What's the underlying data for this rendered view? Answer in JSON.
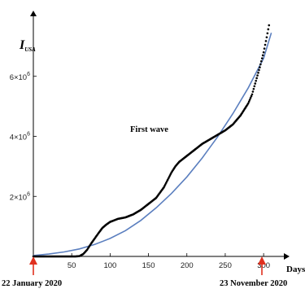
{
  "chart_data": {
    "type": "line",
    "title": "",
    "ylabel_main": "I",
    "ylabel_sub": "USA",
    "xlabel": "Days",
    "xlim": [
      0,
      320
    ],
    "ylim": [
      0,
      8000000
    ],
    "x_ticks": [
      50,
      100,
      150,
      200,
      250,
      300
    ],
    "x_tick_labels": [
      "50",
      "100",
      "150",
      "200",
      "250",
      "300"
    ],
    "y_ticks": [
      2000000,
      4000000,
      6000000
    ],
    "y_tick_labels": [
      {
        "base": "2×10",
        "exp": "6"
      },
      {
        "base": "4×10",
        "exp": "6"
      },
      {
        "base": "6×10",
        "exp": "6"
      }
    ],
    "annotations": {
      "wave_label": "First wave",
      "start_label": "22 January 2020",
      "end_label": "23 November 2020"
    },
    "arrow_color": "#e0301e",
    "series": [
      {
        "style": "dots",
        "color": "#000000",
        "x": [
          0,
          40,
          55,
          60,
          65,
          70,
          75,
          80,
          85,
          90,
          95,
          100,
          110,
          120,
          130,
          140,
          150,
          160,
          170,
          175,
          180,
          185,
          190,
          200,
          210,
          220,
          230,
          240,
          250,
          260,
          270,
          280,
          285,
          290,
          295,
          300,
          304,
          307
        ],
        "y": [
          0,
          0,
          0,
          10000,
          80000,
          220000,
          420000,
          600000,
          780000,
          950000,
          1060000,
          1150000,
          1250000,
          1300000,
          1400000,
          1550000,
          1750000,
          1950000,
          2300000,
          2550000,
          2800000,
          3000000,
          3150000,
          3350000,
          3550000,
          3750000,
          3900000,
          4050000,
          4200000,
          4400000,
          4700000,
          5100000,
          5400000,
          5850000,
          6300000,
          6800000,
          7300000,
          7700000
        ]
      },
      {
        "style": "line",
        "color": "#5b7fbf",
        "x": [
          0,
          20,
          40,
          60,
          80,
          100,
          120,
          140,
          160,
          180,
          200,
          220,
          240,
          260,
          280,
          300,
          310
        ],
        "y": [
          30000,
          80000,
          150000,
          250000,
          400000,
          600000,
          860000,
          1200000,
          1620000,
          2100000,
          2650000,
          3280000,
          3980000,
          4760000,
          5620000,
          6600000,
          7450000
        ]
      }
    ]
  }
}
